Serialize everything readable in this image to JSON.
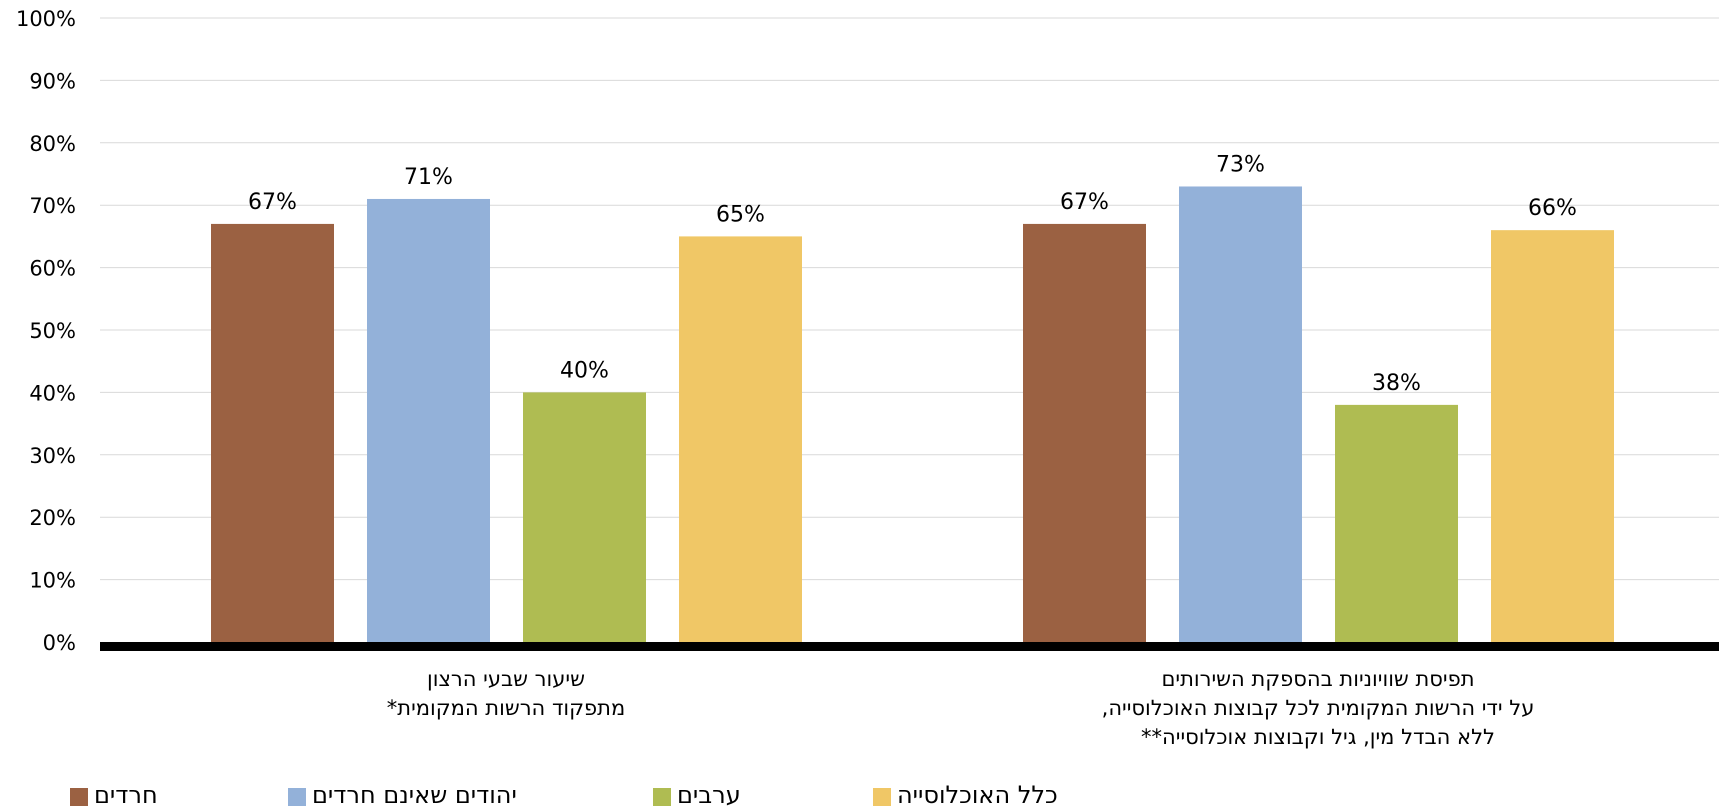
{
  "chart_data": {
    "type": "bar",
    "categories": [
      [
        "שיעור שבעי הרצון",
        "מתפקוד הרשות המקומית*"
      ],
      [
        "תפיסת שוויוניות בהספקת השירותים",
        "על ידי הרשות המקומית לכל קבוצות האוכלוסייה,",
        "ללא הבדל מין, גיל וקבוצות אוכלוסייה**"
      ]
    ],
    "series": [
      {
        "name": "חרדים",
        "color": "#9B6142",
        "values": [
          67,
          67
        ],
        "labels": [
          "67%",
          "67%"
        ]
      },
      {
        "name": "יהודים שאינם חרדים",
        "color": "#93B1D9",
        "values": [
          71,
          73
        ],
        "labels": [
          "71%",
          "73%"
        ]
      },
      {
        "name": "ערבים",
        "color": "#AFBC52",
        "values": [
          40,
          38
        ],
        "labels": [
          "40%",
          "38%"
        ]
      },
      {
        "name": "כלל האוכלוסייה",
        "color": "#F0C766",
        "values": [
          65,
          66
        ],
        "labels": [
          "65%",
          "66%"
        ]
      }
    ],
    "ylim": [
      0,
      100
    ],
    "yticks": [
      "0%",
      "10%",
      "20%",
      "30%",
      "40%",
      "50%",
      "60%",
      "70%",
      "80%",
      "90%",
      "100%"
    ],
    "grid": true,
    "legend_position": "bottom-left"
  }
}
